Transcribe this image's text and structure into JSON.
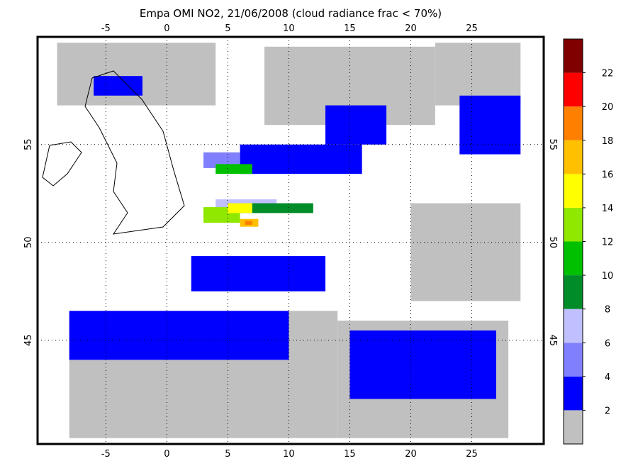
{
  "map": {
    "title": "Empa OMI NO2, 21/06/2008 (cloud radiance frac < 70%)",
    "lonlim": [
      -10.6,
      30.9
    ],
    "latlim": [
      39.7,
      60.5
    ],
    "lonticks": [
      -5,
      0,
      5,
      10,
      15,
      20,
      25
    ],
    "latticks": [
      45,
      50,
      55
    ],
    "colorbar": {
      "levels": [
        0,
        2,
        4,
        6,
        8,
        10,
        12,
        14,
        16,
        18,
        20,
        22,
        24
      ],
      "colors": [
        "#c0c0c0",
        "#0000ff",
        "#8080ff",
        "#c0c0ff",
        "#008c28",
        "#00c000",
        "#90e800",
        "#ffff00",
        "#ffc000",
        "#ff8000",
        "#ff0000",
        "#800000"
      ],
      "ticks": [
        2,
        4,
        6,
        8,
        10,
        12,
        14,
        16,
        18,
        20,
        22
      ]
    },
    "cells": [
      {
        "lon": [
          -9,
          4
        ],
        "lat": [
          57,
          60.2
        ],
        "value": 1
      },
      {
        "lon": [
          8,
          22
        ],
        "lat": [
          56,
          60
        ],
        "value": 1
      },
      {
        "lon": [
          22,
          29
        ],
        "lat": [
          57,
          60.2
        ],
        "value": 1
      },
      {
        "lon": [
          -8,
          14
        ],
        "lat": [
          40,
          46.5
        ],
        "value": 1
      },
      {
        "lon": [
          14,
          28
        ],
        "lat": [
          40,
          46
        ],
        "value": 1
      },
      {
        "lon": [
          20,
          29
        ],
        "lat": [
          47,
          52
        ],
        "value": 1
      },
      {
        "lon": [
          2,
          13
        ],
        "lat": [
          47.5,
          49.3
        ],
        "value": 3
      },
      {
        "lon": [
          6,
          16
        ],
        "lat": [
          53.5,
          55
        ],
        "value": 3
      },
      {
        "lon": [
          13,
          18
        ],
        "lat": [
          55,
          57
        ],
        "value": 3
      },
      {
        "lon": [
          24,
          29
        ],
        "lat": [
          54.5,
          57.5
        ],
        "value": 3
      },
      {
        "lon": [
          -8,
          10
        ],
        "lat": [
          44,
          46.5
        ],
        "value": 3
      },
      {
        "lon": [
          15,
          27
        ],
        "lat": [
          42,
          45.5
        ],
        "value": 3
      },
      {
        "lon": [
          -6,
          -2
        ],
        "lat": [
          57.5,
          58.5
        ],
        "value": 3
      },
      {
        "lon": [
          3,
          6
        ],
        "lat": [
          53.8,
          54.6
        ],
        "value": 5
      },
      {
        "lon": [
          4,
          9
        ],
        "lat": [
          51.5,
          52.2
        ],
        "value": 7
      },
      {
        "lon": [
          5,
          12
        ],
        "lat": [
          51.5,
          52
        ],
        "value": 9
      },
      {
        "lon": [
          4,
          7
        ],
        "lat": [
          53.5,
          54
        ],
        "value": 11
      },
      {
        "lon": [
          3,
          6
        ],
        "lat": [
          51,
          51.8
        ],
        "value": 13
      },
      {
        "lon": [
          5,
          7
        ],
        "lat": [
          51.5,
          52
        ],
        "value": 15
      },
      {
        "lon": [
          6,
          7.5
        ],
        "lat": [
          50.8,
          51.2
        ],
        "value": 17
      },
      {
        "lon": [
          6.4,
          7
        ],
        "lat": [
          50.9,
          51.1
        ],
        "value": 19
      }
    ]
  }
}
